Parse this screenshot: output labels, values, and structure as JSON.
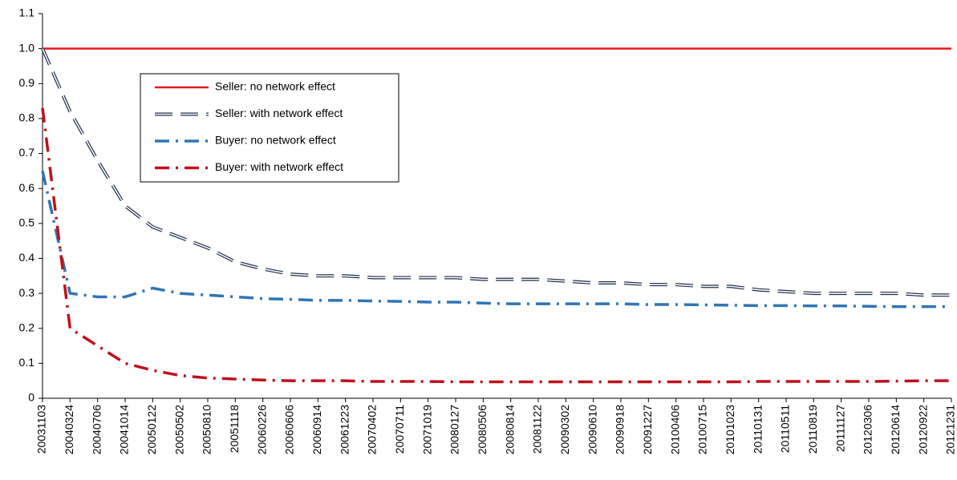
{
  "chart_data": {
    "type": "line",
    "categories": [
      "20031103",
      "20040324",
      "20040706",
      "20041014",
      "20050122",
      "20050502",
      "20050810",
      "20051118",
      "20060226",
      "20060606",
      "20060914",
      "20061223",
      "20070402",
      "20070711",
      "20071019",
      "20080127",
      "20080506",
      "20080814",
      "20081122",
      "20090302",
      "20090610",
      "20090918",
      "20091227",
      "20100406",
      "20100715",
      "20101023",
      "20110131",
      "20110511",
      "20110819",
      "20111127",
      "20120306",
      "20120614",
      "20120922",
      "20121231"
    ],
    "ylim": [
      0,
      1.1
    ],
    "yticks": [
      0,
      0.1,
      0.2,
      0.3,
      0.4,
      0.5,
      0.6,
      0.7,
      0.8,
      0.9,
      {
        "value": 1,
        "label": "1.0"
      },
      1.1
    ],
    "grid": false,
    "legend": "upper-left",
    "series": [
      {
        "name": "Seller: no network effect",
        "color": "#e8191f",
        "style": "solid",
        "values": [
          1,
          1,
          1,
          1,
          1,
          1,
          1,
          1,
          1,
          1,
          1,
          1,
          1,
          1,
          1,
          1,
          1,
          1,
          1,
          1,
          1,
          1,
          1,
          1,
          1,
          1,
          1,
          1,
          1,
          1,
          1,
          1,
          1,
          1
        ]
      },
      {
        "name": "Seller: with network effect",
        "color": "#1f2d4a",
        "style": "double-dash",
        "values": [
          1,
          0.82,
          0.68,
          0.55,
          0.49,
          0.46,
          0.43,
          0.39,
          0.37,
          0.355,
          0.35,
          0.35,
          0.345,
          0.345,
          0.345,
          0.345,
          0.34,
          0.34,
          0.34,
          0.335,
          0.33,
          0.33,
          0.325,
          0.325,
          0.32,
          0.32,
          0.31,
          0.305,
          0.3,
          0.3,
          0.3,
          0.3,
          0.295,
          0.295
        ]
      },
      {
        "name": "Buyer: no network effect",
        "color": "#2f75b5",
        "style": "dash-dot",
        "values": [
          0.65,
          0.3,
          0.29,
          0.29,
          0.315,
          0.3,
          0.295,
          0.29,
          0.285,
          0.283,
          0.28,
          0.28,
          0.278,
          0.277,
          0.275,
          0.275,
          0.272,
          0.27,
          0.27,
          0.27,
          0.27,
          0.27,
          0.268,
          0.268,
          0.267,
          0.266,
          0.265,
          0.265,
          0.264,
          0.264,
          0.263,
          0.262,
          0.262,
          0.262
        ]
      },
      {
        "name": "Buyer: with network effect",
        "color": "#c0101a",
        "style": "dash-dot",
        "values": [
          0.83,
          0.2,
          0.15,
          0.1,
          0.08,
          0.065,
          0.058,
          0.055,
          0.052,
          0.05,
          0.05,
          0.05,
          0.048,
          0.048,
          0.048,
          0.047,
          0.047,
          0.047,
          0.047,
          0.047,
          0.047,
          0.047,
          0.047,
          0.047,
          0.047,
          0.047,
          0.048,
          0.048,
          0.048,
          0.048,
          0.048,
          0.049,
          0.05,
          0.05
        ]
      }
    ]
  }
}
